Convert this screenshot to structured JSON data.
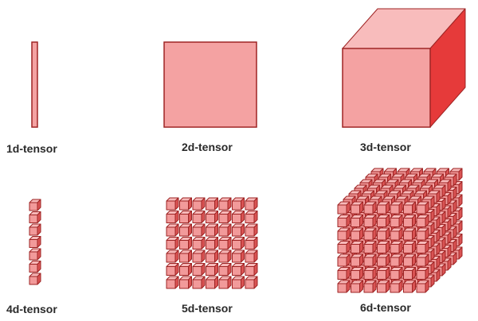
{
  "labels": {
    "t1": "1d-tensor",
    "t2": "2d-tensor",
    "t3": "3d-tensor",
    "t4": "4d-tensor",
    "t5": "5d-tensor",
    "t6": "6d-tensor"
  },
  "colors": {
    "front": "#f4a2a2",
    "top": "#f8bcbc",
    "side": "#e63a3a",
    "stroke": "#9e2424",
    "cube_front": "#f29a9a",
    "cube_top": "#f7b9b9",
    "cube_side": "#d95353"
  },
  "grids": {
    "t4": {
      "cols": 1,
      "rows": 7,
      "depth": 1
    },
    "t5": {
      "cols": 7,
      "rows": 7,
      "depth": 1
    },
    "t6": {
      "cols": 7,
      "rows": 7,
      "depth": 7
    }
  }
}
